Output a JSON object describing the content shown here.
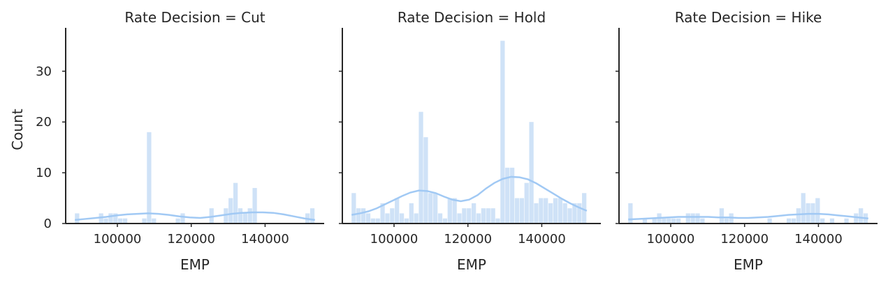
{
  "chart_data": {
    "type": "histogram",
    "ylabel": "Count",
    "ylim": [
      0,
      38
    ],
    "yticks": [
      0,
      10,
      20,
      30
    ],
    "xlim": [
      86000,
      156000
    ],
    "xticks": [
      100000,
      120000,
      140000
    ],
    "bin_start": 88500,
    "bin_width": 1300,
    "kde": true,
    "bar_color": "#cfe2f7",
    "kde_color": "#a1c9f4",
    "facets": [
      {
        "title": "Rate Decision = Cut",
        "xlabel": "EMP",
        "counts": [
          2,
          0,
          0,
          0,
          0,
          2,
          1,
          2,
          2,
          1,
          1,
          0,
          0,
          0,
          1,
          18,
          1,
          0,
          0,
          0,
          0,
          1,
          2,
          0,
          0,
          0,
          0,
          0,
          3,
          0,
          0,
          3,
          5,
          8,
          3,
          2,
          3,
          7,
          0,
          0,
          0,
          0,
          0,
          0,
          0,
          0,
          0,
          0,
          2,
          3
        ],
        "kde": [
          0.7,
          0.9,
          1.1,
          1.3,
          1.6,
          1.8,
          1.9,
          2.0,
          1.9,
          1.7,
          1.4,
          1.2,
          1.1,
          1.3,
          1.6,
          1.9,
          2.1,
          2.2,
          2.2,
          2.1,
          1.8,
          1.4,
          1.0,
          0.7
        ]
      },
      {
        "title": "Rate Decision = Hold",
        "xlabel": "EMP",
        "counts": [
          6,
          3,
          3,
          2,
          1,
          1,
          4,
          2,
          3,
          5,
          2,
          1,
          4,
          2,
          22,
          17,
          6,
          6,
          2,
          1,
          5,
          5,
          2,
          3,
          3,
          4,
          2,
          3,
          3,
          3,
          1,
          36,
          11,
          11,
          5,
          5,
          8,
          20,
          4,
          5,
          5,
          4,
          5,
          5,
          4,
          3,
          4,
          4,
          6
        ],
        "kde": [
          1.7,
          2.0,
          2.4,
          3.0,
          3.8,
          4.6,
          5.4,
          6.1,
          6.5,
          6.4,
          6.0,
          5.3,
          4.7,
          4.4,
          4.7,
          5.6,
          6.9,
          8.0,
          8.8,
          9.2,
          9.1,
          8.7,
          7.9,
          6.9,
          5.9,
          4.9,
          4.0,
          3.2,
          2.5
        ]
      },
      {
        "title": "Rate Decision = Hike",
        "xlabel": "EMP",
        "counts": [
          4,
          0,
          0,
          1,
          0,
          1,
          2,
          1,
          1,
          1,
          1,
          0,
          2,
          2,
          2,
          1,
          0,
          0,
          0,
          3,
          1,
          2,
          0,
          0,
          0,
          0,
          0,
          0,
          0,
          1,
          0,
          0,
          0,
          1,
          1,
          3,
          6,
          4,
          4,
          5,
          1,
          0,
          1,
          0,
          0,
          1,
          0,
          2,
          3,
          2
        ],
        "kde": [
          0.8,
          0.9,
          1.0,
          1.1,
          1.2,
          1.3,
          1.3,
          1.3,
          1.3,
          1.2,
          1.2,
          1.1,
          1.1,
          1.2,
          1.3,
          1.5,
          1.7,
          1.8,
          1.9,
          1.9,
          1.8,
          1.6,
          1.4,
          1.2,
          1.0
        ]
      }
    ]
  }
}
